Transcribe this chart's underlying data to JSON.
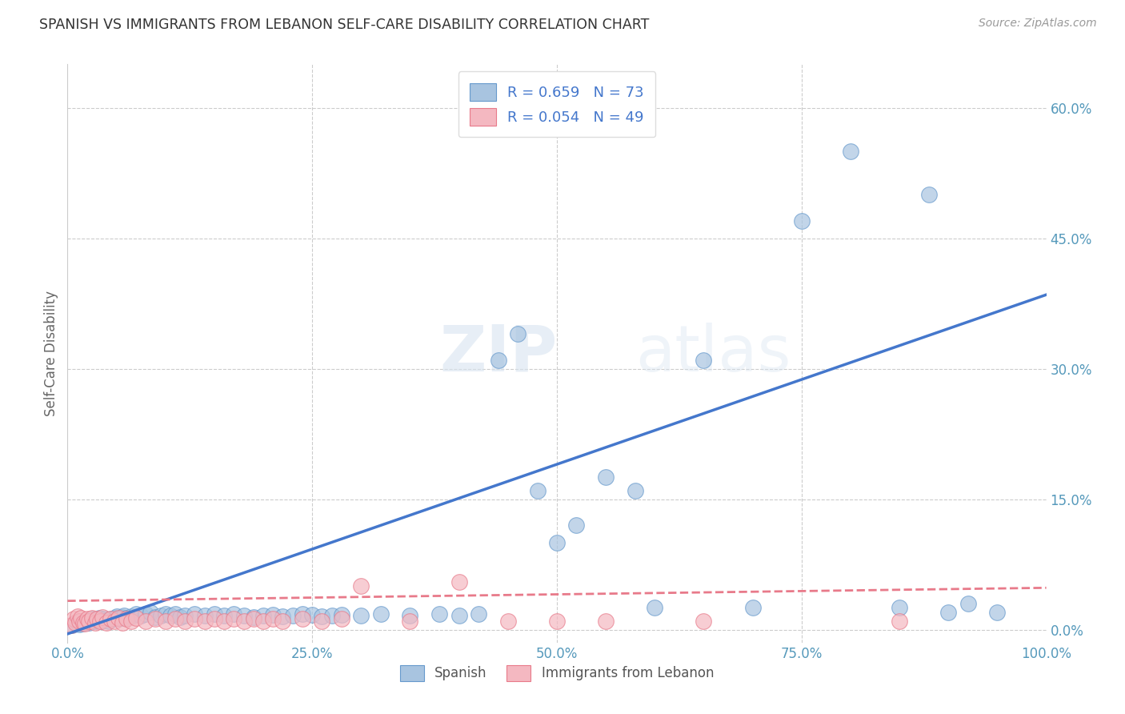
{
  "title": "SPANISH VS IMMIGRANTS FROM LEBANON SELF-CARE DISABILITY CORRELATION CHART",
  "source": "Source: ZipAtlas.com",
  "ylabel": "Self-Care Disability",
  "xlim": [
    0,
    1.0
  ],
  "ylim": [
    -0.015,
    0.65
  ],
  "xticks": [
    0.0,
    0.25,
    0.5,
    0.75,
    1.0
  ],
  "xticklabels": [
    "0.0%",
    "25.0%",
    "50.0%",
    "75.0%",
    "100.0%"
  ],
  "yticks_right": [
    0.0,
    0.15,
    0.3,
    0.45,
    0.6
  ],
  "yticklabels_right": [
    "0.0%",
    "15.0%",
    "30.0%",
    "45.0%",
    "60.0%"
  ],
  "blue_color": "#A8C4E0",
  "blue_edge_color": "#6699CC",
  "pink_color": "#F4B8C1",
  "pink_edge_color": "#E87A8A",
  "line_blue": "#4477CC",
  "line_pink": "#E87A8A",
  "R_blue": 0.659,
  "N_blue": 73,
  "R_pink": 0.054,
  "N_pink": 49,
  "watermark_zip": "ZIP",
  "watermark_atlas": "atlas",
  "legend_labels": [
    "Spanish",
    "Immigrants from Lebanon"
  ],
  "blue_x": [
    0.005,
    0.01,
    0.012,
    0.015,
    0.018,
    0.02,
    0.022,
    0.025,
    0.028,
    0.03,
    0.032,
    0.035,
    0.038,
    0.04,
    0.042,
    0.045,
    0.048,
    0.05,
    0.052,
    0.055,
    0.058,
    0.06,
    0.065,
    0.07,
    0.075,
    0.08,
    0.085,
    0.09,
    0.095,
    0.1,
    0.105,
    0.11,
    0.115,
    0.12,
    0.13,
    0.14,
    0.15,
    0.16,
    0.17,
    0.18,
    0.19,
    0.2,
    0.21,
    0.22,
    0.23,
    0.24,
    0.25,
    0.26,
    0.27,
    0.28,
    0.3,
    0.32,
    0.35,
    0.38,
    0.4,
    0.42,
    0.44,
    0.46,
    0.48,
    0.5,
    0.52,
    0.55,
    0.58,
    0.6,
    0.65,
    0.7,
    0.75,
    0.8,
    0.85,
    0.88,
    0.9,
    0.92,
    0.95
  ],
  "blue_y": [
    0.005,
    0.008,
    0.006,
    0.007,
    0.009,
    0.01,
    0.008,
    0.012,
    0.01,
    0.011,
    0.013,
    0.01,
    0.012,
    0.011,
    0.01,
    0.012,
    0.013,
    0.015,
    0.012,
    0.014,
    0.016,
    0.013,
    0.015,
    0.018,
    0.016,
    0.018,
    0.02,
    0.014,
    0.016,
    0.018,
    0.016,
    0.018,
    0.014,
    0.016,
    0.018,
    0.016,
    0.018,
    0.016,
    0.018,
    0.016,
    0.014,
    0.016,
    0.017,
    0.015,
    0.016,
    0.018,
    0.017,
    0.015,
    0.016,
    0.017,
    0.016,
    0.018,
    0.016,
    0.018,
    0.016,
    0.018,
    0.31,
    0.34,
    0.16,
    0.1,
    0.12,
    0.175,
    0.16,
    0.025,
    0.31,
    0.025,
    0.47,
    0.55,
    0.025,
    0.5,
    0.02,
    0.03,
    0.02
  ],
  "pink_x": [
    0.004,
    0.006,
    0.008,
    0.01,
    0.012,
    0.014,
    0.016,
    0.018,
    0.02,
    0.022,
    0.025,
    0.028,
    0.03,
    0.033,
    0.036,
    0.04,
    0.044,
    0.048,
    0.052,
    0.056,
    0.06,
    0.065,
    0.07,
    0.08,
    0.09,
    0.1,
    0.11,
    0.12,
    0.13,
    0.14,
    0.15,
    0.16,
    0.17,
    0.18,
    0.19,
    0.2,
    0.21,
    0.22,
    0.24,
    0.26,
    0.28,
    0.3,
    0.35,
    0.4,
    0.45,
    0.5,
    0.55,
    0.65,
    0.85
  ],
  "pink_y": [
    0.005,
    0.012,
    0.008,
    0.015,
    0.01,
    0.013,
    0.008,
    0.007,
    0.012,
    0.01,
    0.013,
    0.008,
    0.012,
    0.01,
    0.014,
    0.008,
    0.012,
    0.01,
    0.013,
    0.008,
    0.012,
    0.01,
    0.013,
    0.01,
    0.012,
    0.01,
    0.012,
    0.01,
    0.012,
    0.01,
    0.012,
    0.01,
    0.012,
    0.01,
    0.012,
    0.01,
    0.012,
    0.01,
    0.012,
    0.01,
    0.012,
    0.05,
    0.01,
    0.055,
    0.01,
    0.01,
    0.01,
    0.01,
    0.01
  ],
  "blue_line_x": [
    0.0,
    1.0
  ],
  "blue_line_y": [
    -0.005,
    0.385
  ],
  "pink_line_x": [
    0.0,
    1.0
  ],
  "pink_line_y": [
    0.033,
    0.048
  ]
}
